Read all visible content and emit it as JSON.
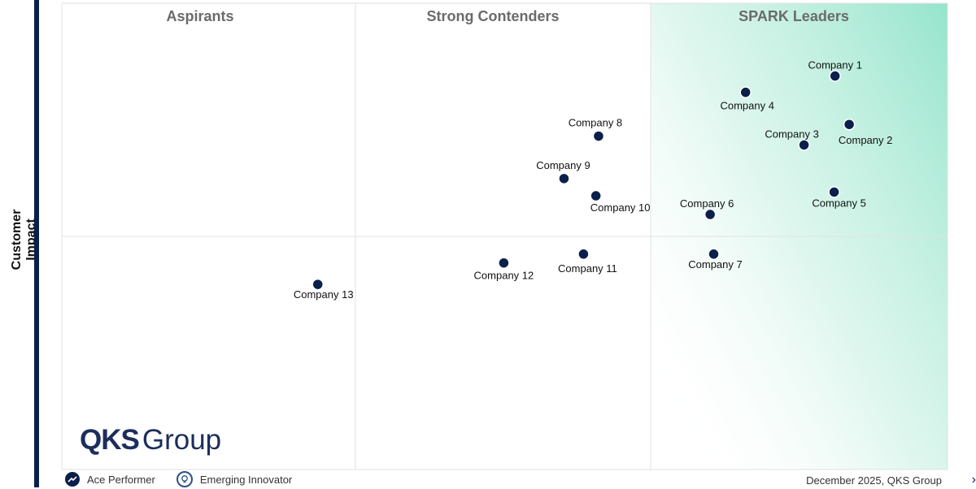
{
  "chart_data": {
    "type": "scatter",
    "ylabel": "Customer Impact",
    "xlabel": "",
    "quadrants": [
      "Aspirants",
      "Strong Contenders",
      "SPARK Leaders"
    ],
    "xlim": [
      0,
      100
    ],
    "ylim": [
      0,
      100
    ],
    "grid": true,
    "points": [
      {
        "name": "Company 1",
        "x": 87.3,
        "y": 84.4
      },
      {
        "name": "Company 2",
        "x": 88.9,
        "y": 74.0
      },
      {
        "name": "Company 3",
        "x": 83.8,
        "y": 69.6
      },
      {
        "name": "Company 4",
        "x": 77.2,
        "y": 80.9
      },
      {
        "name": "Company 5",
        "x": 87.2,
        "y": 59.5
      },
      {
        "name": "Company 6",
        "x": 73.2,
        "y": 54.7
      },
      {
        "name": "Company 7",
        "x": 73.6,
        "y": 46.2
      },
      {
        "name": "Company 8",
        "x": 60.6,
        "y": 71.5
      },
      {
        "name": "Company 9",
        "x": 56.7,
        "y": 62.4
      },
      {
        "name": "Company 10",
        "x": 60.3,
        "y": 58.7
      },
      {
        "name": "Company 11",
        "x": 58.9,
        "y": 46.2
      },
      {
        "name": "Company 12",
        "x": 49.9,
        "y": 44.3
      },
      {
        "name": "Company 13",
        "x": 28.9,
        "y": 39.7
      }
    ]
  },
  "branding": {
    "logo_bold": "QKS",
    "logo_regular": "Group"
  },
  "legend": {
    "ace": "Ace Performer",
    "emerging": "Emerging Innovator"
  },
  "footer": "December 2025, QKS Group",
  "colors": {
    "marker": "#0b1f4b",
    "leader_gradient": "#8fe3c9",
    "axis": "#0b1f4b"
  }
}
